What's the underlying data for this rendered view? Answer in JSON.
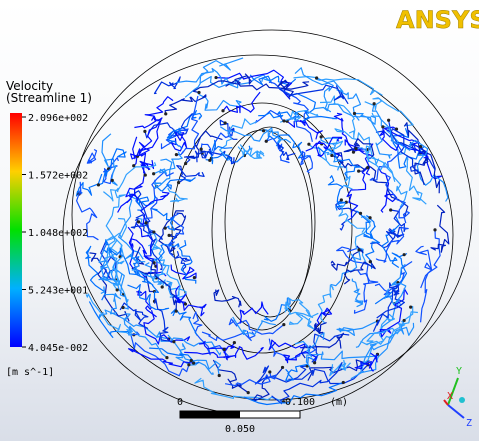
{
  "logo": "ANSYS",
  "legend": {
    "title": "Velocity",
    "subtitle": "(Streamline 1)",
    "labels": [
      "2.096e+002",
      "1.572e+002",
      "1.048e+002",
      "5.243e+001",
      "4.045e-002"
    ],
    "unit": "[m s^-1]"
  },
  "scale_bar": {
    "start": "0",
    "end": "0.100",
    "unit": "(m)",
    "mid": "0.050"
  },
  "axes": {
    "y": "Y",
    "x": "X",
    "z": "Z"
  }
}
